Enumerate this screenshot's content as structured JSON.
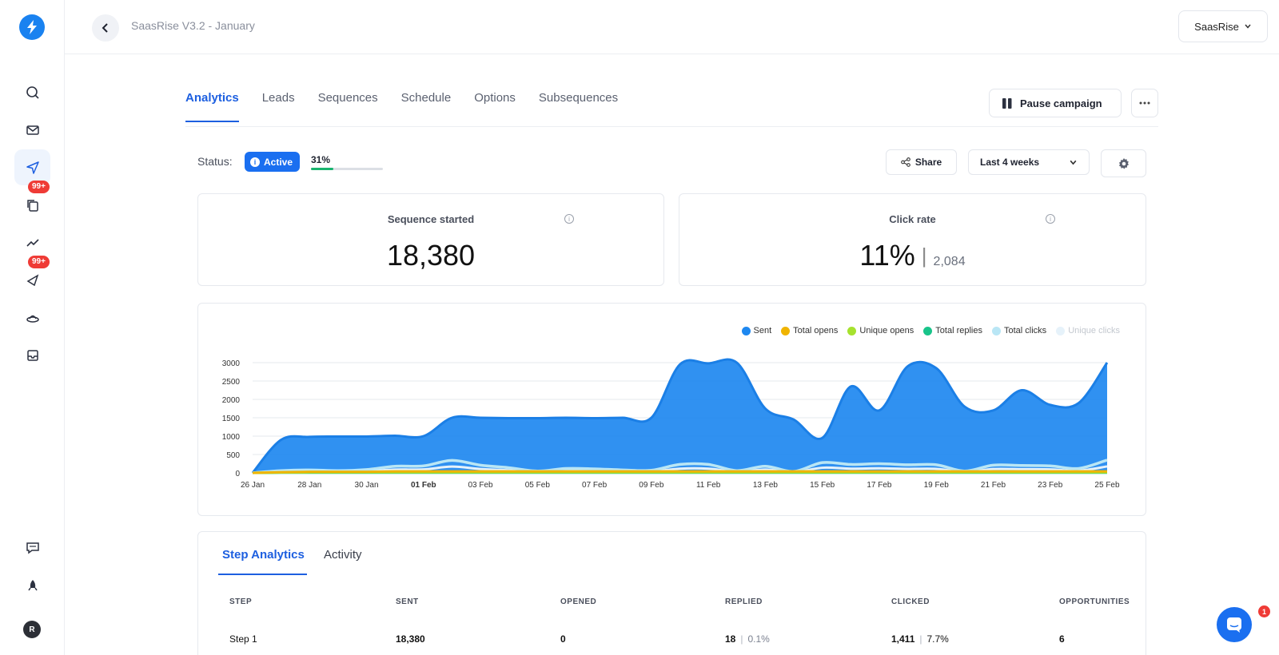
{
  "breadcrumb": {
    "title": "SaasRise V3.2 - January"
  },
  "workspace": {
    "label": "SaasRise"
  },
  "sidebar": {
    "badges": [
      "99+",
      "99+"
    ],
    "avatar_initial": "R"
  },
  "tabs": [
    "Analytics",
    "Leads",
    "Sequences",
    "Schedule",
    "Options",
    "Subsequences"
  ],
  "actions": {
    "pause_label": "Pause campaign",
    "share_label": "Share",
    "range_label": "Last 4 weeks"
  },
  "status": {
    "label": "Status:",
    "value": "Active",
    "progress_text": "31%",
    "progress": 0.31
  },
  "stats": [
    {
      "title": "Sequence started",
      "value": "18,380"
    },
    {
      "title": "Click rate",
      "value": "11%",
      "sub": "2,084"
    }
  ],
  "chart_data": {
    "type": "area",
    "legend_position": "top-right",
    "x_tick_labels": [
      "26 Jan",
      "28 Jan",
      "30 Jan",
      "01 Feb",
      "03 Feb",
      "05 Feb",
      "07 Feb",
      "09 Feb",
      "11 Feb",
      "13 Feb",
      "15 Feb",
      "17 Feb",
      "19 Feb",
      "21 Feb",
      "23 Feb",
      "25 Feb"
    ],
    "bold_tick": "01 Feb",
    "y_ticks": [
      0,
      500,
      1000,
      1500,
      2000,
      2500,
      3000
    ],
    "ylim": [
      0,
      3000
    ],
    "x": [
      "26 Jan",
      "27 Jan",
      "28 Jan",
      "29 Jan",
      "30 Jan",
      "31 Jan",
      "01 Feb",
      "02 Feb",
      "03 Feb",
      "04 Feb",
      "05 Feb",
      "06 Feb",
      "07 Feb",
      "08 Feb",
      "09 Feb",
      "10 Feb",
      "11 Feb",
      "12 Feb",
      "13 Feb",
      "14 Feb",
      "15 Feb",
      "16 Feb",
      "17 Feb",
      "18 Feb",
      "19 Feb",
      "20 Feb",
      "21 Feb",
      "22 Feb",
      "23 Feb",
      "24 Feb",
      "25 Feb"
    ],
    "series": [
      {
        "name": "Sent",
        "color": "#1e88f0",
        "values": [
          0,
          900,
          980,
          990,
          990,
          1010,
          1000,
          1500,
          1500,
          1490,
          1490,
          1500,
          1490,
          1500,
          1500,
          2950,
          2980,
          3000,
          1750,
          1450,
          950,
          2350,
          1700,
          2900,
          2850,
          1800,
          1700,
          2250,
          1850,
          1900,
          3000
        ]
      },
      {
        "name": "Total opens",
        "color": "#f0b400",
        "values": [
          0,
          20,
          30,
          30,
          30,
          40,
          40,
          40,
          40,
          40,
          40,
          40,
          40,
          40,
          40,
          40,
          40,
          40,
          40,
          40,
          40,
          40,
          40,
          40,
          40,
          40,
          40,
          40,
          40,
          40,
          40
        ]
      },
      {
        "name": "Unique opens",
        "color": "#a6e22e",
        "values": [
          0,
          10,
          15,
          15,
          15,
          15,
          15,
          15,
          15,
          15,
          15,
          15,
          15,
          15,
          15,
          15,
          15,
          15,
          15,
          15,
          15,
          15,
          15,
          15,
          15,
          15,
          15,
          15,
          15,
          15,
          15
        ]
      },
      {
        "name": "Total replies",
        "color": "#19c48a",
        "values": [
          0,
          5,
          5,
          5,
          5,
          5,
          5,
          5,
          5,
          5,
          5,
          5,
          5,
          5,
          5,
          5,
          5,
          5,
          5,
          5,
          5,
          5,
          5,
          5,
          5,
          5,
          5,
          5,
          5,
          5,
          5
        ]
      },
      {
        "name": "Total clicks",
        "color": "#b9e6f5",
        "values": [
          0,
          60,
          80,
          60,
          90,
          180,
          190,
          340,
          210,
          140,
          50,
          120,
          110,
          80,
          70,
          230,
          230,
          60,
          180,
          40,
          280,
          230,
          250,
          220,
          220,
          50,
          210,
          200,
          190,
          120,
          350
        ]
      },
      {
        "name": "Unique clicks",
        "color": "#e6f2fa",
        "values": [
          0,
          30,
          40,
          30,
          45,
          90,
          95,
          170,
          105,
          70,
          25,
          60,
          55,
          40,
          35,
          115,
          115,
          30,
          90,
          20,
          140,
          115,
          125,
          110,
          110,
          25,
          105,
          100,
          95,
          60,
          175
        ]
      }
    ]
  },
  "step_analytics": {
    "tabs": [
      "Step Analytics",
      "Activity"
    ],
    "columns": [
      "STEP",
      "SENT",
      "OPENED",
      "REPLIED",
      "CLICKED",
      "OPPORTUNITIES"
    ],
    "rows": [
      {
        "step": "Step 1",
        "sent": "18,380",
        "opened": "0",
        "replied": "18",
        "replied_pct": "0.1%",
        "clicked": "1,411",
        "clicked_pct": "7.7%",
        "opportunities": "6"
      }
    ]
  },
  "chat": {
    "badge": "1"
  },
  "colors": {
    "accent": "#1d5fe0",
    "active_pill": "#1a6ff0",
    "badge": "#ef3b36",
    "progress": "#19b46e"
  }
}
